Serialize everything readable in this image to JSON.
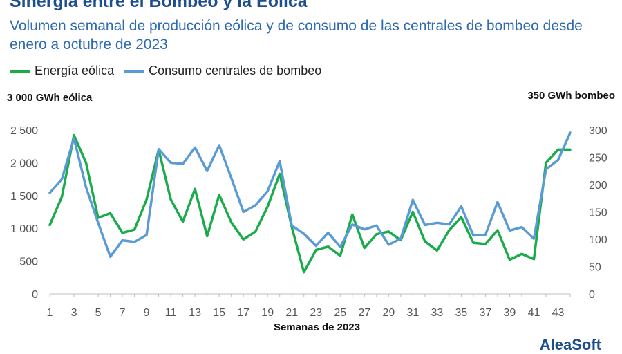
{
  "header": {
    "title": "Sinergia entre el Bombeo y la Eólica",
    "subtitle": "Volumen semanal de producción eólica y de consumo de las centrales de bombeo desde enero a octubre de 2023"
  },
  "legend": {
    "items": [
      {
        "label": "Energía eólica",
        "color": "#1aab4b"
      },
      {
        "label": "Consumo centrales de bombeo",
        "color": "#5b9bd5"
      }
    ]
  },
  "axis_captions": {
    "left": "3 000 GWh eólica",
    "right": "350 GWh bombeo"
  },
  "logo": {
    "text": "AleaSoft"
  },
  "chart_data": {
    "type": "line",
    "xlabel": "Semanas de 2023",
    "x": [
      1,
      2,
      3,
      4,
      5,
      6,
      7,
      8,
      9,
      10,
      11,
      12,
      13,
      14,
      15,
      16,
      17,
      18,
      19,
      20,
      21,
      22,
      23,
      24,
      25,
      26,
      27,
      28,
      29,
      30,
      31,
      32,
      33,
      34,
      35,
      36,
      37,
      38,
      39,
      40,
      41,
      42,
      43,
      44
    ],
    "x_tick_labels": [
      "1",
      "3",
      "5",
      "7",
      "9",
      "11",
      "13",
      "15",
      "17",
      "19",
      "21",
      "23",
      "25",
      "27",
      "29",
      "31",
      "33",
      "35",
      "37",
      "39",
      "41",
      "43"
    ],
    "left_axis": {
      "range": [
        0,
        2500
      ],
      "ticks": [
        0,
        500,
        1000,
        1500,
        2000,
        2500
      ],
      "tick_labels": [
        "0",
        "500",
        "1 000",
        "1 500",
        "2 000",
        "2 500"
      ]
    },
    "right_axis": {
      "range": [
        0,
        300
      ],
      "ticks": [
        0,
        50,
        100,
        150,
        200,
        250,
        300
      ],
      "tick_labels": [
        "0",
        "50",
        "100",
        "150",
        "200",
        "250",
        "300"
      ]
    },
    "grid": true,
    "legend_position": "top-left",
    "series": [
      {
        "name": "Energía eólica",
        "axis": "left",
        "color": "#1aab4b",
        "values": [
          1050,
          1480,
          2420,
          2000,
          1160,
          1230,
          930,
          980,
          1440,
          2200,
          1440,
          1100,
          1600,
          880,
          1510,
          1090,
          830,
          950,
          1330,
          1830,
          1020,
          330,
          670,
          720,
          580,
          1210,
          700,
          910,
          950,
          820,
          1250,
          800,
          660,
          970,
          1170,
          780,
          760,
          970,
          520,
          610,
          530,
          2000,
          2200,
          2200
        ]
      },
      {
        "name": "Consumo centrales de bombeo",
        "axis": "right",
        "color": "#5b9bd5",
        "values": [
          185,
          210,
          285,
          195,
          130,
          68,
          98,
          95,
          108,
          265,
          240,
          238,
          268,
          225,
          272,
          212,
          150,
          162,
          188,
          243,
          125,
          110,
          88,
          112,
          86,
          127,
          118,
          125,
          90,
          101,
          172,
          126,
          130,
          127,
          160,
          107,
          108,
          168,
          116,
          122,
          101,
          228,
          245,
          295
        ]
      }
    ]
  }
}
